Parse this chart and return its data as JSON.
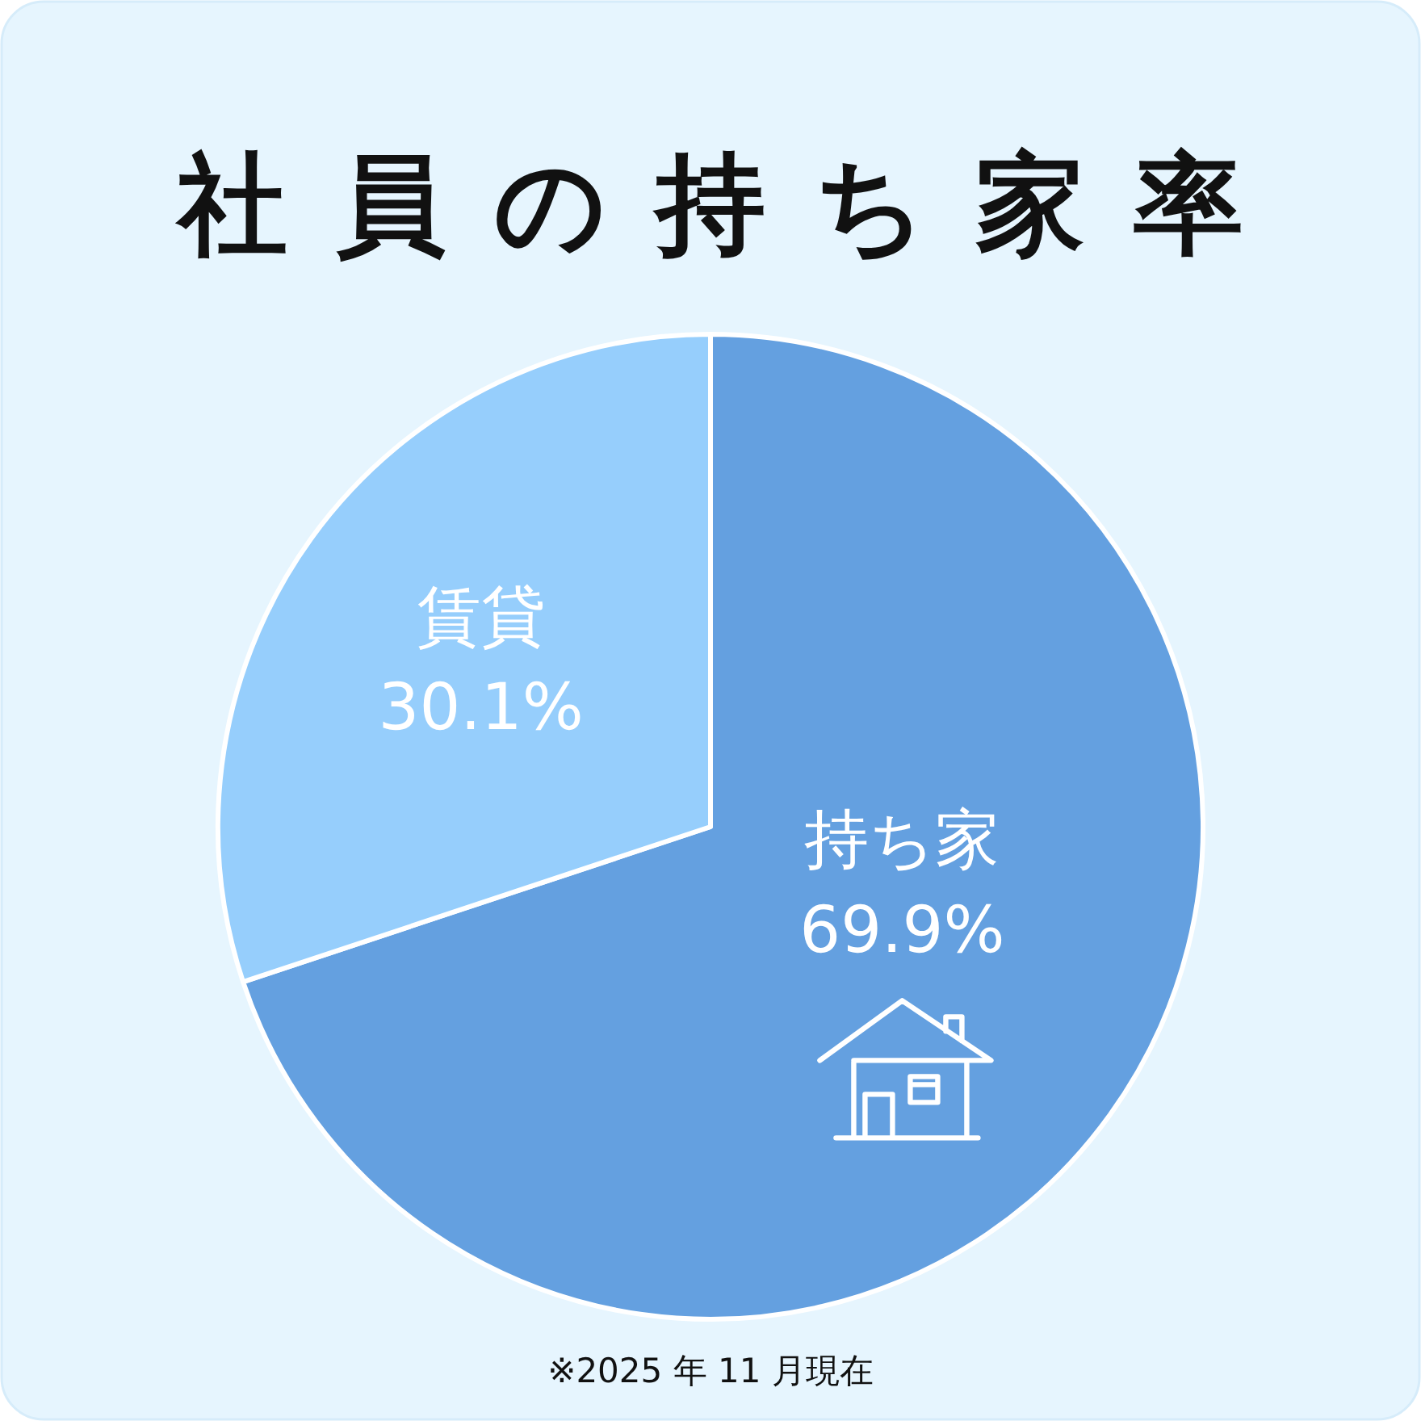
{
  "chart_data": {
    "type": "pie",
    "title": "社員の持ち家率",
    "categories": [
      "持ち家",
      "賃貸"
    ],
    "values": [
      69.9,
      30.1
    ],
    "colors": [
      "#64a0e0",
      "#96cefc"
    ],
    "value_labels": [
      "69.9%",
      "30.1%"
    ],
    "annotations": [
      "※2025 年 11 月現在"
    ]
  }
}
